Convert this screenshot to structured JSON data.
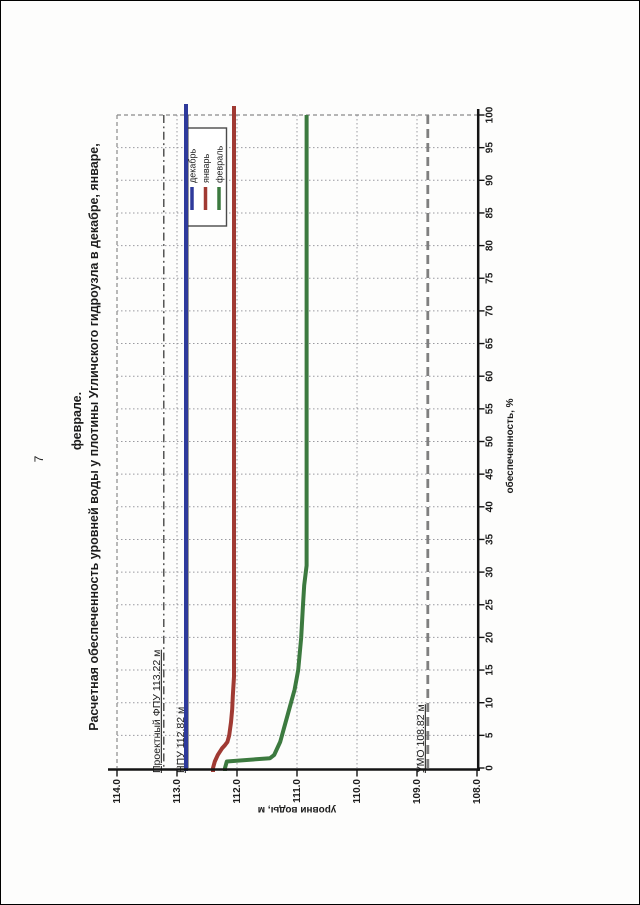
{
  "page": {
    "number": "7"
  },
  "title": {
    "line1": "Расчетная обеспеченность уровней воды у плотины Угличского гидроузла в декабре, январе,",
    "line2": "феврале."
  },
  "chart_data": {
    "type": "line",
    "title": "Расчетная обеспеченность уровней воды у плотины Угличского гидроузла в декабре, январе, феврале.",
    "orientation_note": "chart printed rotated 90 degrees counterclockwise on the page",
    "xlabel": "обеспеченность,  %",
    "ylabel": "уровни воды, м",
    "xlim": [
      0,
      100
    ],
    "ylim": [
      108.0,
      114.0
    ],
    "grid": "fine dotted, every 5% and every 1.0 m",
    "legend_position": "top-left of plot",
    "percent_ticks": [
      0,
      5,
      10,
      15,
      20,
      25,
      30,
      35,
      40,
      45,
      50,
      55,
      60,
      65,
      70,
      75,
      80,
      85,
      90,
      95,
      100
    ],
    "level_ticks": [
      "114.0",
      "113.0",
      "112.0",
      "111.0",
      "110.0",
      "109.0",
      "108.0"
    ],
    "series": [
      {
        "name": "декабрь",
        "color": "#2e3a9b",
        "points": [
          [
            0,
            112.85
          ],
          [
            100,
            112.85
          ]
        ]
      },
      {
        "name": "январь",
        "color": "#a03a33",
        "points": [
          [
            0,
            112.4
          ],
          [
            1,
            112.37
          ],
          [
            2,
            112.32
          ],
          [
            3,
            112.25
          ],
          [
            3.5,
            112.2
          ],
          [
            4,
            112.16
          ],
          [
            5,
            112.13
          ],
          [
            7,
            112.1
          ],
          [
            9,
            112.08
          ],
          [
            11,
            112.07
          ],
          [
            14,
            112.05
          ],
          [
            100,
            112.05
          ]
        ]
      },
      {
        "name": "февраль",
        "color": "#3c7a3f",
        "points": [
          [
            0,
            112.2
          ],
          [
            1,
            112.17
          ],
          [
            1.5,
            111.45
          ],
          [
            2,
            111.38
          ],
          [
            3,
            111.33
          ],
          [
            4,
            111.28
          ],
          [
            5,
            111.25
          ],
          [
            6,
            111.22
          ],
          [
            8,
            111.16
          ],
          [
            10,
            111.1
          ],
          [
            12,
            111.04
          ],
          [
            14,
            111.0
          ],
          [
            15,
            110.98
          ],
          [
            18,
            110.95
          ],
          [
            20,
            110.93
          ],
          [
            25,
            110.9
          ],
          [
            28,
            110.88
          ],
          [
            31,
            110.84
          ],
          [
            100,
            110.84
          ]
        ]
      }
    ],
    "reference_lines": [
      {
        "id": "fpu",
        "label": "Проектный ФПУ 113.22 м",
        "value": 113.22,
        "style": "dashdot",
        "color": "#3a3a3a"
      },
      {
        "id": "npu",
        "label": "НПУ 112.82 м",
        "value": 112.82,
        "style": "solid",
        "color": "#3a3a3a"
      },
      {
        "id": "umo",
        "label": "УМО 108.82 м",
        "value": 108.82,
        "style": "dashed",
        "color": "#7f7f7f"
      }
    ],
    "colors": {
      "grid": "#9a9aa0",
      "border_dash": "#8a8a8a",
      "axis": "#141414"
    }
  }
}
